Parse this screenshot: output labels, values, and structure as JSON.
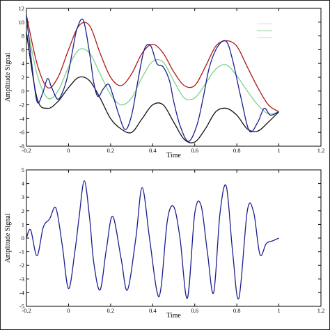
{
  "chart_data": [
    {
      "type": "line",
      "title": "",
      "xlabel": "Time",
      "ylabel": "Amplitude Signal",
      "xlim": [
        -0.2,
        1.2
      ],
      "ylim": [
        -8,
        12
      ],
      "xticks": [
        -0.2,
        0,
        0.2,
        0.4,
        0.6,
        0.8,
        1,
        1.2
      ],
      "xtick_labels": [
        "-0.2",
        "0",
        "0.2",
        "0.4",
        "0.6",
        "0.8",
        "1",
        "1.2"
      ],
      "yticks": [
        -8,
        -6,
        -4,
        -2,
        0,
        2,
        4,
        6,
        8,
        10,
        12
      ],
      "ytick_labels": [
        "-8",
        "-6",
        "-4",
        "-2",
        "0",
        "2",
        "4",
        "6",
        "8",
        "10",
        "12"
      ],
      "grid": false,
      "legend": "top-right",
      "series": [
        {
          "color": "#b01818",
          "x": [
            -0.2,
            -0.15,
            -0.1,
            -0.05,
            0.0,
            0.05,
            0.1,
            0.15,
            0.2,
            0.25,
            0.3,
            0.35,
            0.4,
            0.45,
            0.5,
            0.55,
            0.6,
            0.65,
            0.7,
            0.75,
            0.8,
            0.85,
            0.9,
            0.95,
            1.0
          ],
          "y": [
            11,
            4,
            0.5,
            2,
            6,
            9.5,
            9.5,
            5.5,
            2,
            0.8,
            2.5,
            5.5,
            6.8,
            5.5,
            2.8,
            0.8,
            0.8,
            3.5,
            6.5,
            7.3,
            6.5,
            3.5,
            0.5,
            -2,
            -3
          ]
        },
        {
          "color": "#7fd08a",
          "x": [
            -0.2,
            -0.15,
            -0.1,
            -0.05,
            0.0,
            0.05,
            0.1,
            0.15,
            0.2,
            0.25,
            0.3,
            0.35,
            0.4,
            0.45,
            0.5,
            0.55,
            0.6,
            0.65,
            0.7,
            0.75,
            0.8,
            0.85,
            0.9,
            0.95,
            1.0
          ],
          "y": [
            10,
            2.5,
            -1,
            0,
            3.5,
            6,
            5.5,
            2.5,
            -0.5,
            -2,
            -1,
            2,
            4.3,
            4.2,
            1.5,
            -1,
            -1,
            1,
            3.2,
            3.8,
            2.2,
            0,
            -2,
            -3.3,
            -3
          ]
        },
        {
          "color": "#111111",
          "x": [
            -0.2,
            -0.15,
            -0.1,
            -0.05,
            0.0,
            0.05,
            0.1,
            0.15,
            0.2,
            0.25,
            0.3,
            0.35,
            0.4,
            0.45,
            0.5,
            0.55,
            0.6,
            0.65,
            0.7,
            0.75,
            0.8,
            0.85,
            0.9,
            0.95,
            1.0
          ],
          "y": [
            8.5,
            -1,
            -2.5,
            -1.5,
            0.5,
            2,
            1.5,
            -1,
            -4,
            -5.5,
            -6,
            -4,
            -2,
            -2,
            -4.5,
            -7,
            -7.4,
            -5.5,
            -3,
            -2.5,
            -3.5,
            -5.5,
            -5.8,
            -4.5,
            -3
          ]
        },
        {
          "color": "#1a1f8f",
          "x": [
            -0.2,
            -0.175,
            -0.15,
            -0.125,
            -0.1,
            -0.08,
            -0.05,
            -0.02,
            0.0,
            0.02,
            0.04,
            0.07,
            0.1,
            0.12,
            0.14,
            0.165,
            0.19,
            0.21,
            0.24,
            0.27,
            0.3,
            0.33,
            0.36,
            0.39,
            0.42,
            0.45,
            0.48,
            0.5,
            0.53,
            0.57,
            0.61,
            0.64,
            0.67,
            0.71,
            0.75,
            0.78,
            0.82,
            0.86,
            0.9,
            0.93,
            0.96,
            1.0
          ],
          "y": [
            11,
            4,
            -1.5,
            -0.5,
            1.8,
            0.5,
            -1.2,
            0.5,
            2.8,
            6,
            9,
            10.3,
            5.5,
            1.2,
            -0.8,
            0.3,
            1,
            -0.5,
            -3.5,
            -5.6,
            -3.5,
            1.5,
            6,
            6.6,
            4,
            3.5,
            1.5,
            -1.5,
            -5,
            -7.3,
            -5,
            -1,
            3.5,
            6.5,
            7.2,
            4.5,
            -1,
            -5.8,
            -4.5,
            -2.5,
            -3.5,
            -3
          ]
        }
      ]
    },
    {
      "type": "line",
      "title": "",
      "xlabel": "Time",
      "ylabel": "Amplitude Signal",
      "xlim": [
        -0.2,
        1.2
      ],
      "ylim": [
        -5,
        5
      ],
      "xticks": [
        -0.2,
        0,
        0.2,
        0.4,
        0.6,
        0.8,
        1,
        1.2
      ],
      "xtick_labels": [
        "-0.2",
        "0",
        "0.2",
        "0.4",
        "0.6",
        "0.8",
        "1",
        "1.2"
      ],
      "yticks": [
        -5,
        -4,
        -3,
        -2,
        -1,
        0,
        1,
        2,
        3,
        4,
        5
      ],
      "ytick_labels": [
        "-5",
        "-4",
        "-3",
        "-2",
        "-1",
        "0",
        "1",
        "2",
        "3",
        "4",
        "5"
      ],
      "grid": false,
      "series": [
        {
          "color": "#1a1f8f",
          "x": [
            -0.2,
            -0.18,
            -0.15,
            -0.12,
            -0.09,
            -0.06,
            -0.03,
            0.0,
            0.03,
            0.05,
            0.075,
            0.1,
            0.12,
            0.15,
            0.18,
            0.21,
            0.25,
            0.28,
            0.32,
            0.35,
            0.385,
            0.42,
            0.44,
            0.47,
            0.5,
            0.53,
            0.565,
            0.6,
            0.63,
            0.66,
            0.69,
            0.72,
            0.75,
            0.78,
            0.81,
            0.85,
            0.88,
            0.91,
            0.94,
            0.97,
            1.0
          ],
          "y": [
            0,
            0.6,
            -1.3,
            0.8,
            1.4,
            2.2,
            -0.5,
            -3.7,
            -1,
            1.5,
            4.2,
            1.5,
            -1.8,
            -3.8,
            -0.8,
            1.6,
            -1.5,
            -3.8,
            0,
            3.7,
            0,
            -3.9,
            -3.6,
            1.3,
            2.3,
            0,
            -4.4,
            1.8,
            2.4,
            -1,
            -4,
            1.8,
            3.8,
            -1,
            -4.4,
            2,
            1.9,
            -1.2,
            -0.4,
            -0.2,
            0
          ]
        }
      ]
    }
  ]
}
